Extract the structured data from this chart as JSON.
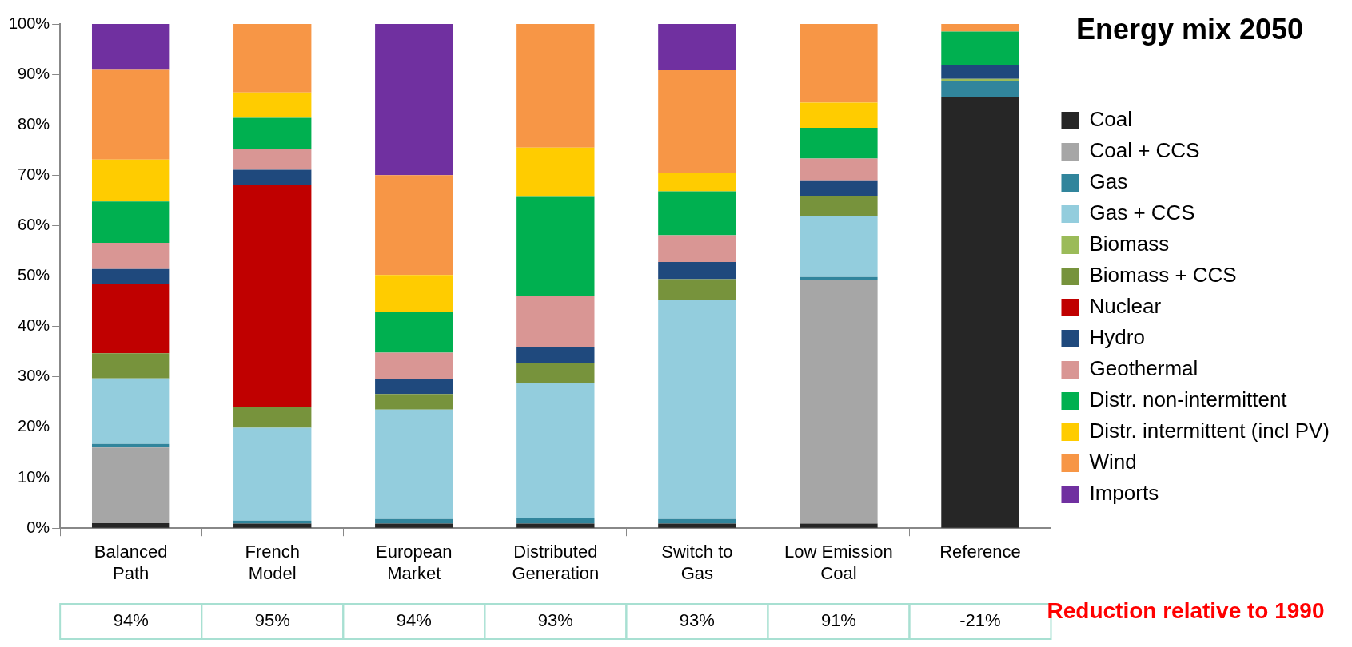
{
  "chart_data": {
    "type": "bar",
    "title": "Energy mix 2050",
    "stacked": true,
    "legend": "right",
    "categories": [
      "Balanced Path",
      "French Model",
      "European Market",
      "Distributed Generation",
      "Switch to Gas",
      "Low Emission Coal",
      "Reference"
    ],
    "ylim": [
      0,
      100
    ],
    "yticks": [
      {
        "value": 0,
        "label": "0%"
      },
      {
        "value": 10,
        "label": "10%"
      },
      {
        "value": 20,
        "label": "20%"
      },
      {
        "value": 30,
        "label": "30%"
      },
      {
        "value": 40,
        "label": "40%"
      },
      {
        "value": 50,
        "label": "50%"
      },
      {
        "value": 60,
        "label": "60%"
      },
      {
        "value": 70,
        "label": "70%"
      },
      {
        "value": 80,
        "label": "80%"
      },
      {
        "value": 90,
        "label": "90%"
      },
      {
        "value": 100,
        "label": "100%"
      }
    ],
    "series": [
      {
        "name": "Coal",
        "color": "#262626",
        "values": [
          1,
          0.9,
          0.9,
          0.9,
          0.9,
          0.9,
          85.6
        ]
      },
      {
        "name": "Coal + CCS",
        "color": "#a6a6a6",
        "values": [
          15,
          0,
          0,
          0,
          0,
          48.3,
          0
        ]
      },
      {
        "name": "Gas",
        "color": "#31859c",
        "values": [
          0.7,
          0.6,
          0.9,
          1.1,
          0.9,
          0.6,
          3
        ]
      },
      {
        "name": "Gas + CCS",
        "color": "#93cddd",
        "values": [
          13,
          18.4,
          21.7,
          26.7,
          43.4,
          12,
          0
        ]
      },
      {
        "name": "Biomass",
        "color": "#9bbb59",
        "values": [
          0,
          0,
          0,
          0,
          0,
          0,
          0.5
        ]
      },
      {
        "name": "Biomass + CCS",
        "color": "#77933c",
        "values": [
          5,
          4.2,
          3.1,
          4.1,
          4.2,
          4.1,
          0
        ]
      },
      {
        "name": "Nuclear",
        "color": "#c00000",
        "values": [
          13.7,
          43.9,
          0,
          0,
          0,
          0,
          0
        ]
      },
      {
        "name": "Hydro",
        "color": "#1f497d",
        "values": [
          3,
          3.1,
          3,
          3.2,
          3.4,
          3.1,
          2.8
        ]
      },
      {
        "name": "Geothermal",
        "color": "#d99694",
        "values": [
          5.2,
          4.2,
          5.2,
          10.1,
          5.3,
          4.3,
          0
        ]
      },
      {
        "name": "Distr. non-intermittent",
        "color": "#00b050",
        "values": [
          8.2,
          6.1,
          8.1,
          19.6,
          8.7,
          6.1,
          6.6
        ]
      },
      {
        "name": "Distr. intermittent (incl PV)",
        "color": "#ffcc00",
        "values": [
          8.3,
          5,
          7.3,
          9.8,
          3.6,
          5,
          0
        ]
      },
      {
        "name": "Wind",
        "color": "#f79646",
        "values": [
          17.8,
          13.6,
          19.8,
          24.5,
          20.4,
          15.6,
          1.5
        ]
      },
      {
        "name": "Imports",
        "color": "#7030a0",
        "values": [
          9.1,
          0,
          30,
          0,
          9.2,
          0,
          0
        ]
      }
    ],
    "annotations": [
      "94%",
      "95%",
      "94%",
      "93%",
      "93%",
      "91%",
      "-21%",
      "Reduction relative to 1990"
    ]
  }
}
